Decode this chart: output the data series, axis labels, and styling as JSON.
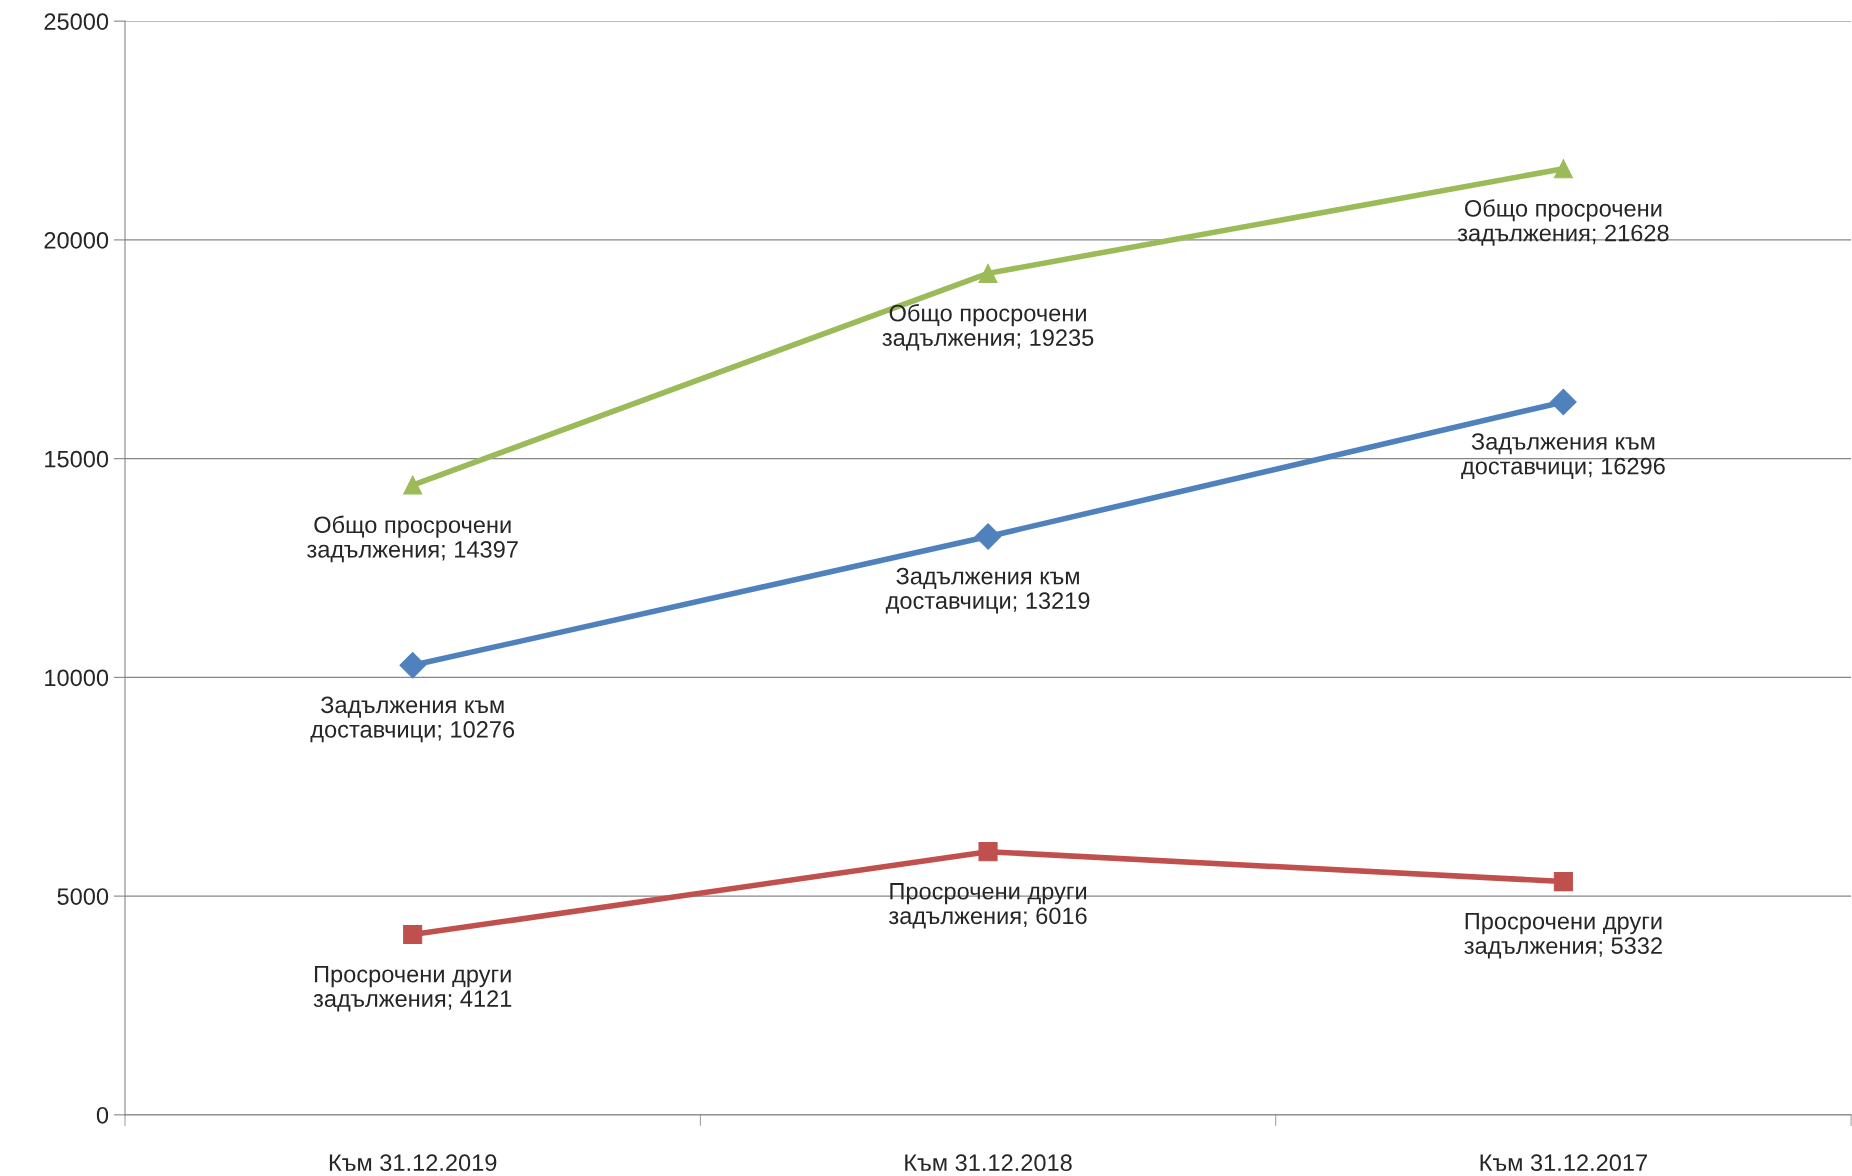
{
  "chart_data": {
    "type": "line",
    "categories": [
      "Към 31.12.2019",
      "Към 31.12.2018",
      "Към 31.12.2017"
    ],
    "series": [
      {
        "color": "#9bbb59",
        "marker": "triangle",
        "values": [
          14397,
          19235,
          21628
        ],
        "value_labels": [
          "Общо просрочени\nзадължения; 14397",
          "Общо просрочени\nзадължения; 19235",
          "Общо просрочени\nзадължения; 21628"
        ]
      },
      {
        "color": "#4f81bd",
        "marker": "diamond",
        "values": [
          10276,
          13219,
          16296
        ],
        "value_labels": [
          "Задължения към\nдоставчици; 10276",
          "Задължения към\nдоставчици; 13219",
          "Задължения към\nдоставчици; 16296"
        ]
      },
      {
        "color": "#c0504d",
        "marker": "square",
        "values": [
          4121,
          6016,
          5332
        ],
        "value_labels": [
          "Просрочени други\nзадължения; 4121",
          "Просрочени други\nзадължения; 6016",
          "Просрочени други\nзадължения; 5332"
        ]
      }
    ],
    "ylim": [
      0,
      25000
    ],
    "yticks": [
      0,
      5000,
      10000,
      15000,
      20000,
      25000
    ],
    "grid": "y",
    "line_style": "solid"
  }
}
